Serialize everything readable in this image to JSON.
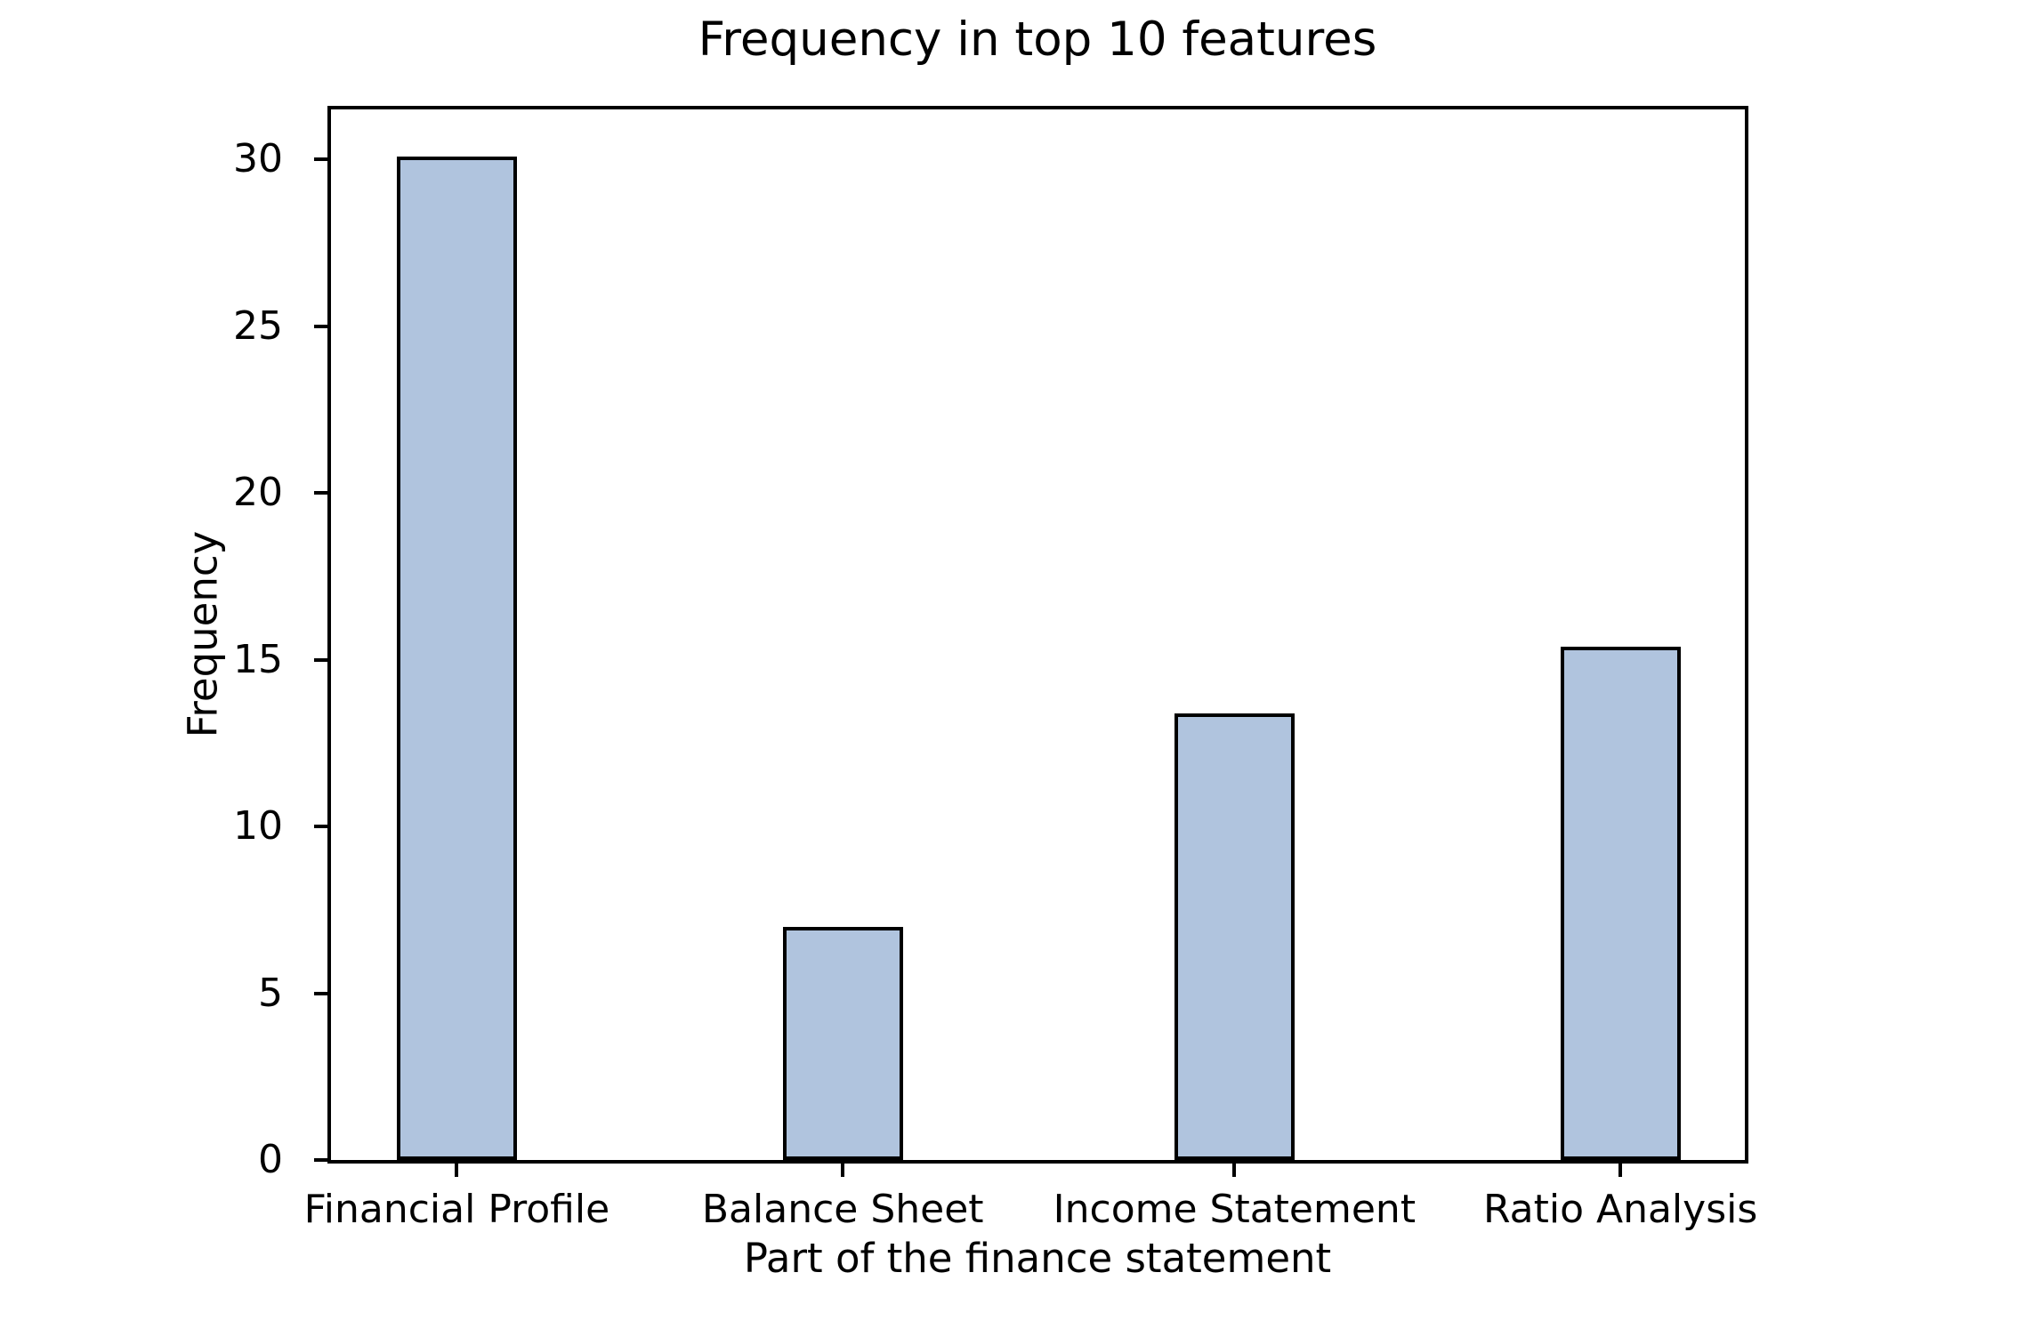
{
  "chart_data": {
    "type": "bar",
    "title": "Frequency in top 10 features",
    "xlabel": "Part of the finance statement",
    "ylabel": "Frequency",
    "categories": [
      "Financial Profile",
      "Balance Sheet",
      "Income Statement",
      "Ratio Analysis"
    ],
    "values": [
      30.1,
      7.0,
      13.4,
      15.4
    ],
    "yticks": [
      0,
      5,
      10,
      15,
      20,
      25,
      30
    ],
    "ylim": [
      0,
      31.5
    ],
    "grid": false,
    "legend": null,
    "bar_color": "#b0c4de",
    "bar_edge_color": "#000000",
    "bar_centers_frac": [
      0.089,
      0.362,
      0.639,
      0.912
    ],
    "bar_width_frac": 0.085
  }
}
